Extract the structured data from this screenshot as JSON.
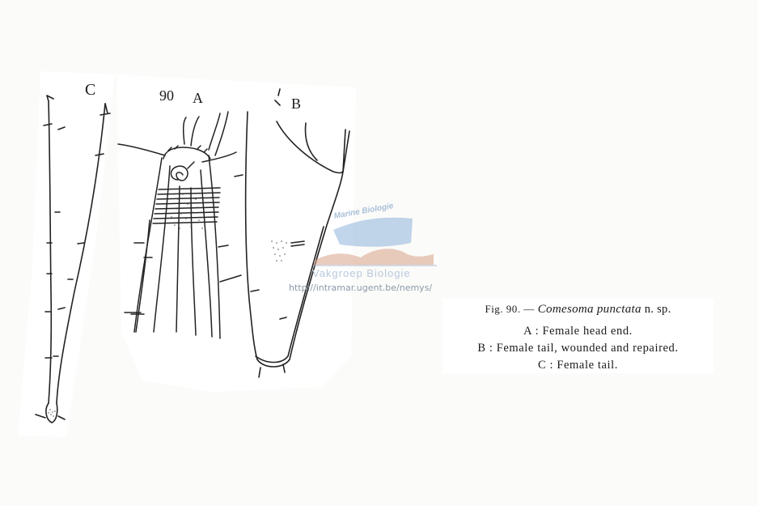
{
  "figure": {
    "number": "90",
    "panel_labels": {
      "a": "A",
      "b": "B",
      "c": "C"
    }
  },
  "caption": {
    "fig_label": "Fig. 90. —",
    "species": "Comesoma punctata",
    "suffix": " n. sp.",
    "items": [
      "A : Female head end.",
      "B : Female tail, wounded and repaired.",
      "C : Female tail."
    ]
  },
  "watermark": {
    "top_text": "Marine Biologie",
    "middle_text": "Vakgroep Biologie",
    "url": "http://intramar.ugent.be/nemys/"
  }
}
